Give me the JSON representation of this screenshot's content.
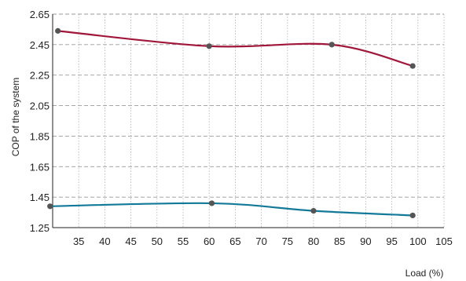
{
  "chart_data": {
    "type": "line",
    "title": "",
    "xlabel": "Load (%)",
    "ylabel": "COP of the system",
    "xlim": [
      30,
      105
    ],
    "ylim": [
      1.25,
      2.65
    ],
    "xticks": [
      "35",
      "40",
      "45",
      "50",
      "55",
      "60",
      "65",
      "70",
      "75",
      "80",
      "85",
      "90",
      "95",
      "100",
      "105"
    ],
    "yticks": [
      "1.25",
      "1.45",
      "1.65",
      "1.85",
      "2.05",
      "2.25",
      "2.45",
      "2.65"
    ],
    "grid": true,
    "series": [
      {
        "color": "#a0163a",
        "x": [
          31,
          60,
          83.5,
          99
        ],
        "y": [
          2.54,
          2.44,
          2.45,
          2.31
        ]
      },
      {
        "color": "#127a98",
        "x": [
          29.5,
          60.5,
          80,
          99
        ],
        "y": [
          1.39,
          1.41,
          1.36,
          1.33
        ]
      }
    ]
  }
}
